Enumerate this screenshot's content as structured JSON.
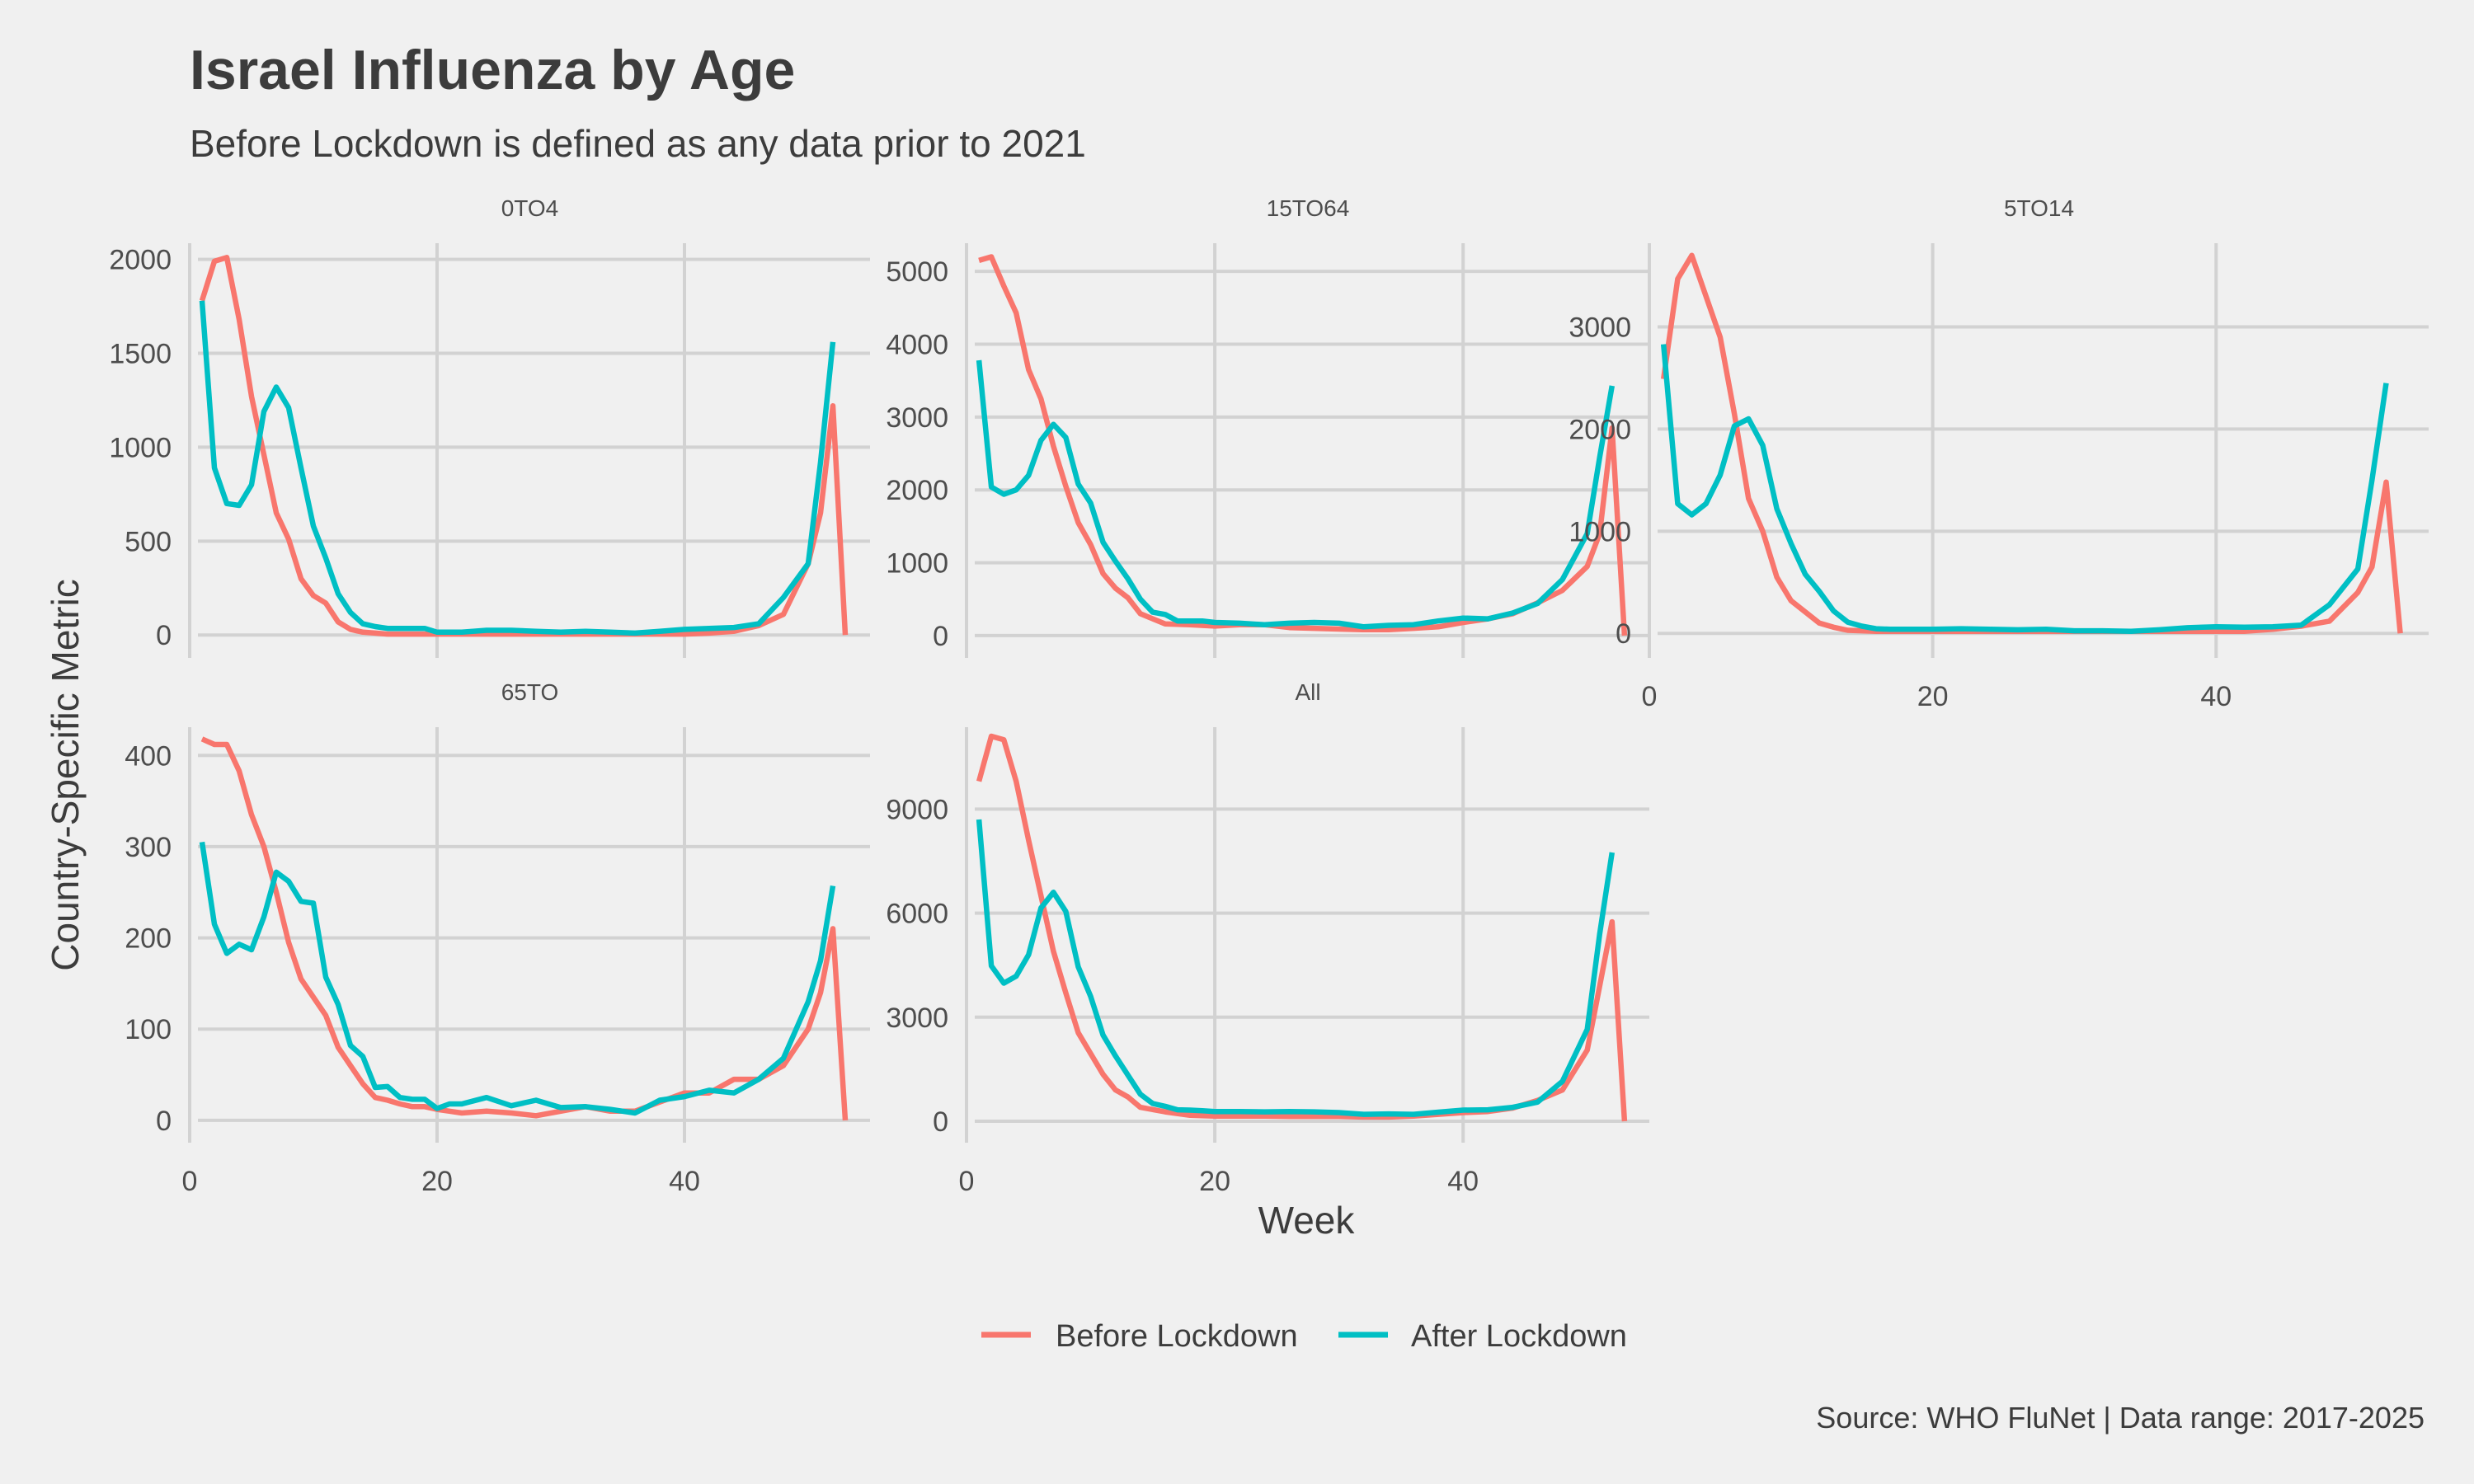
{
  "title": "Israel Influenza by Age",
  "subtitle": "Before Lockdown is defined as any data prior to 2021",
  "caption": "Source: WHO FluNet | Data range: 2017-2025",
  "colors": {
    "before": "#f8766d",
    "after": "#00bfc4",
    "background": "#f0f0f0",
    "grid": "#d2d2d2"
  },
  "chart_data": {
    "type": "line",
    "facet": "wrap",
    "columns": 3,
    "xlabel": "Week",
    "ylabel": "Country-Specific Metric",
    "xlim": [
      0,
      55
    ],
    "x_ticks": [
      0,
      20,
      40
    ],
    "grid": true,
    "legend": {
      "position": "bottom",
      "entries": [
        "Before Lockdown",
        "After Lockdown"
      ]
    },
    "panels": [
      {
        "name": "0TO4",
        "ylim": [
          -100,
          2130
        ],
        "y_ticks": [
          0,
          500,
          1000,
          1500,
          2000
        ],
        "series": [
          {
            "name": "Before Lockdown",
            "x": [
              1,
              2,
              3,
              4,
              5,
              6,
              7,
              8,
              9,
              10,
              11,
              12,
              13,
              14,
              15,
              16,
              17,
              18,
              20,
              22,
              24,
              26,
              28,
              30,
              32,
              34,
              36,
              38,
              40,
              42,
              44,
              46,
              48,
              50,
              51,
              52,
              53
            ],
            "y": [
              1780,
              1990,
              2010,
              1680,
              1270,
              960,
              650,
              510,
              300,
              210,
              170,
              70,
              30,
              15,
              10,
              5,
              5,
              5,
              5,
              5,
              5,
              5,
              5,
              5,
              5,
              5,
              5,
              5,
              5,
              10,
              20,
              50,
              110,
              380,
              650,
              1220,
              0
            ]
          },
          {
            "name": "After Lockdown",
            "x": [
              1,
              2,
              3,
              4,
              5,
              6,
              7,
              8,
              9,
              10,
              11,
              12,
              13,
              14,
              15,
              16,
              17,
              18,
              19,
              20,
              22,
              24,
              26,
              28,
              30,
              32,
              34,
              36,
              38,
              40,
              42,
              44,
              46,
              48,
              50,
              51,
              52
            ],
            "y": [
              1780,
              890,
              700,
              690,
              800,
              1190,
              1320,
              1210,
              890,
              580,
              410,
              220,
              120,
              60,
              45,
              35,
              35,
              35,
              35,
              15,
              15,
              25,
              25,
              20,
              15,
              20,
              15,
              10,
              20,
              30,
              35,
              40,
              60,
              200,
              380,
              920,
              1560
            ]
          }
        ]
      },
      {
        "name": "15TO64",
        "ylim": [
          -250,
          5500
        ],
        "y_ticks": [
          0,
          1000,
          2000,
          3000,
          4000,
          5000
        ],
        "series": [
          {
            "name": "Before Lockdown",
            "x": [
              1,
              2,
              3,
              4,
              5,
              6,
              7,
              8,
              9,
              10,
              11,
              12,
              13,
              14,
              16,
              18,
              20,
              22,
              24,
              26,
              28,
              30,
              32,
              34,
              36,
              38,
              40,
              42,
              44,
              46,
              48,
              50,
              51,
              52,
              53
            ],
            "y": [
              5150,
              5200,
              4800,
              4430,
              3650,
              3250,
              2600,
              2050,
              1550,
              1250,
              850,
              650,
              520,
              300,
              160,
              150,
              130,
              150,
              150,
              110,
              100,
              90,
              80,
              80,
              100,
              120,
              180,
              230,
              300,
              450,
              620,
              950,
              1400,
              2850,
              0
            ]
          },
          {
            "name": "After Lockdown",
            "x": [
              1,
              2,
              3,
              4,
              5,
              6,
              7,
              8,
              9,
              10,
              11,
              12,
              13,
              14,
              15,
              16,
              17,
              18,
              19,
              20,
              22,
              24,
              26,
              28,
              30,
              32,
              34,
              36,
              38,
              40,
              42,
              44,
              46,
              48,
              50,
              51,
              52
            ],
            "y": [
              3780,
              2040,
              1940,
              2000,
              2200,
              2680,
              2900,
              2720,
              2080,
              1820,
              1280,
              1020,
              780,
              500,
              320,
              290,
              200,
              200,
              200,
              180,
              170,
              150,
              170,
              180,
              170,
              120,
              140,
              150,
              200,
              240,
              230,
              310,
              440,
              770,
              1400,
              2450,
              3430
            ]
          }
        ]
      },
      {
        "name": "5TO14",
        "ylim": [
          -200,
          3900
        ],
        "y_ticks": [
          0,
          1000,
          2000,
          3000
        ],
        "series": [
          {
            "name": "Before Lockdown",
            "x": [
              1,
              2,
              3,
              4,
              5,
              6,
              7,
              8,
              9,
              10,
              11,
              12,
              13,
              14,
              16,
              18,
              20,
              22,
              24,
              26,
              28,
              30,
              32,
              34,
              36,
              38,
              40,
              42,
              44,
              46,
              48,
              50,
              51,
              52,
              53
            ],
            "y": [
              2490,
              3470,
              3700,
              3300,
              2900,
              2150,
              1320,
              1000,
              550,
              320,
              210,
              100,
              60,
              30,
              20,
              20,
              20,
              20,
              20,
              20,
              20,
              20,
              20,
              20,
              20,
              20,
              20,
              20,
              40,
              70,
              120,
              400,
              650,
              1480,
              0
            ]
          },
          {
            "name": "After Lockdown",
            "x": [
              1,
              2,
              3,
              4,
              5,
              6,
              7,
              8,
              9,
              10,
              11,
              12,
              13,
              14,
              15,
              16,
              17,
              18,
              19,
              20,
              22,
              24,
              26,
              28,
              30,
              32,
              34,
              36,
              38,
              40,
              42,
              44,
              46,
              48,
              50,
              51,
              52
            ],
            "y": [
              2830,
              1270,
              1160,
              1270,
              1550,
              2030,
              2100,
              1840,
              1220,
              880,
              580,
              410,
              220,
              110,
              70,
              45,
              40,
              40,
              40,
              40,
              45,
              40,
              35,
              40,
              25,
              25,
              20,
              35,
              55,
              65,
              60,
              65,
              80,
              280,
              630,
              1500,
              2450
            ]
          }
        ]
      },
      {
        "name": "65TO",
        "ylim": [
          -20,
          440
        ],
        "y_ticks": [
          0,
          100,
          200,
          300,
          400
        ],
        "series": [
          {
            "name": "Before Lockdown",
            "x": [
              1,
              2,
              3,
              4,
              5,
              6,
              7,
              8,
              9,
              10,
              11,
              12,
              13,
              14,
              15,
              16,
              17,
              18,
              19,
              20,
              21,
              22,
              24,
              26,
              28,
              30,
              32,
              34,
              36,
              38,
              40,
              42,
              44,
              46,
              48,
              50,
              51,
              52,
              53
            ],
            "y": [
              418,
              412,
              412,
              383,
              335,
              300,
              250,
              195,
              155,
              135,
              115,
              80,
              60,
              40,
              25,
              22,
              18,
              15,
              15,
              12,
              10,
              8,
              10,
              8,
              5,
              10,
              15,
              10,
              10,
              20,
              30,
              30,
              45,
              45,
              60,
              100,
              140,
              210,
              0
            ]
          },
          {
            "name": "After Lockdown",
            "x": [
              1,
              2,
              3,
              4,
              5,
              6,
              7,
              8,
              9,
              10,
              11,
              12,
              13,
              14,
              15,
              16,
              17,
              18,
              19,
              20,
              21,
              22,
              24,
              26,
              28,
              30,
              32,
              34,
              36,
              38,
              40,
              42,
              44,
              46,
              48,
              50,
              51,
              52
            ],
            "y": [
              305,
              215,
              183,
              193,
              187,
              223,
              272,
              262,
              240,
              238,
              157,
              127,
              82,
              70,
              36,
              37,
              25,
              23,
              23,
              13,
              18,
              18,
              25,
              16,
              22,
              14,
              15,
              12,
              8,
              22,
              26,
              33,
              30,
              45,
              68,
              130,
              175,
              257
            ]
          }
        ]
      },
      {
        "name": "All",
        "ylim": [
          -500,
          11600
        ],
        "y_ticks": [
          0,
          3000,
          6000,
          9000
        ],
        "series": [
          {
            "name": "Before Lockdown",
            "x": [
              1,
              2,
              3,
              4,
              5,
              6,
              7,
              8,
              9,
              10,
              11,
              12,
              13,
              14,
              16,
              18,
              20,
              22,
              24,
              26,
              28,
              30,
              32,
              34,
              36,
              38,
              40,
              42,
              44,
              46,
              48,
              50,
              51,
              52,
              53
            ],
            "y": [
              9800,
              11100,
              11000,
              9800,
              8100,
              6500,
              4900,
              3700,
              2550,
              1950,
              1350,
              900,
              700,
              400,
              270,
              170,
              150,
              150,
              150,
              140,
              140,
              140,
              120,
              120,
              150,
              200,
              250,
              280,
              380,
              600,
              900,
              2050,
              3900,
              5750,
              0
            ]
          },
          {
            "name": "After Lockdown",
            "x": [
              1,
              2,
              3,
              4,
              5,
              6,
              7,
              8,
              9,
              10,
              11,
              12,
              13,
              14,
              15,
              16,
              17,
              18,
              19,
              20,
              22,
              24,
              26,
              28,
              30,
              32,
              34,
              36,
              38,
              40,
              42,
              44,
              46,
              48,
              50,
              51,
              52
            ],
            "y": [
              8700,
              4480,
              3980,
              4180,
              4800,
              6150,
              6600,
              6050,
              4450,
              3600,
              2480,
              1880,
              1330,
              780,
              510,
              430,
              330,
              320,
              300,
              280,
              280,
              270,
              280,
              270,
              250,
              200,
              210,
              200,
              260,
              320,
              330,
              400,
              550,
              1150,
              2650,
              5400,
              7750
            ]
          }
        ]
      }
    ]
  }
}
